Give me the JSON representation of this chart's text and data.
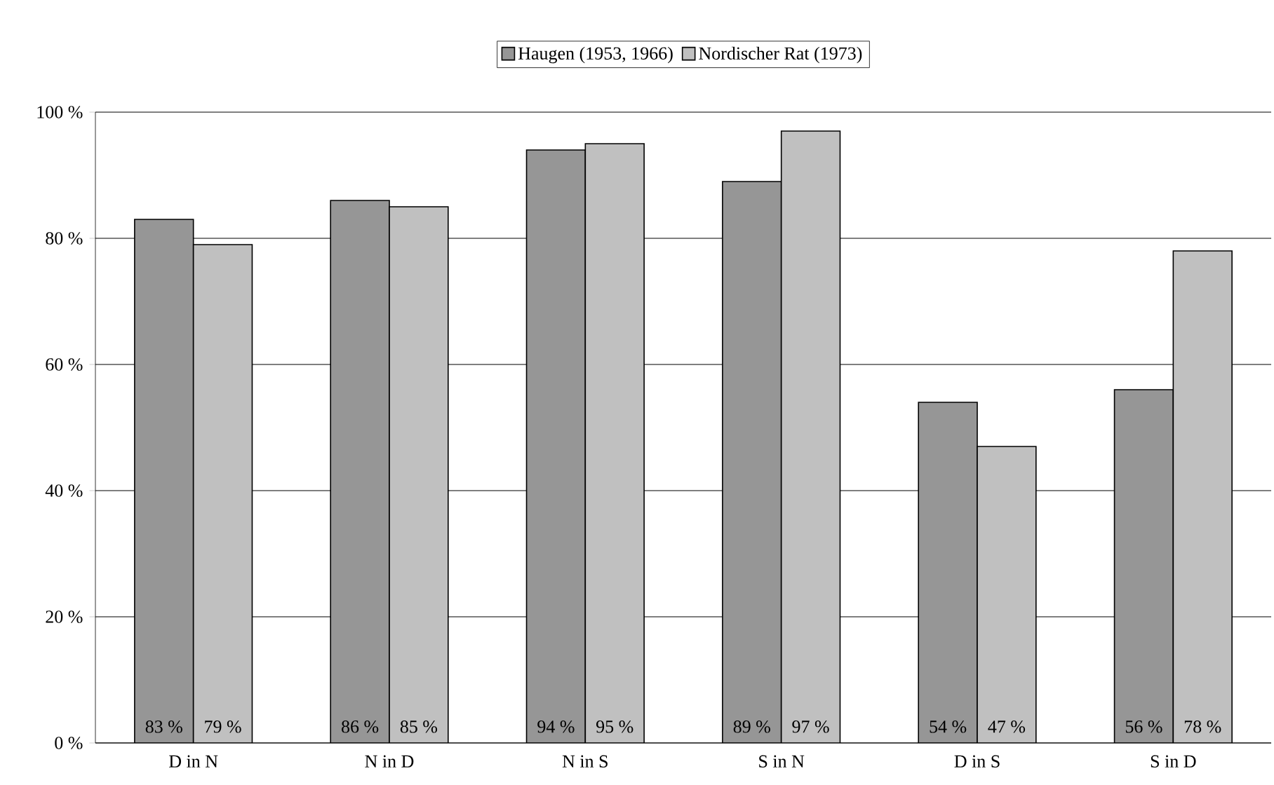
{
  "chart_data": {
    "type": "bar",
    "categories": [
      "D in N",
      "N in D",
      "N in S",
      "S in N",
      "D in S",
      "S in D"
    ],
    "series": [
      {
        "name": "Haugen (1953, 1966)",
        "color": "#969696",
        "values": [
          83,
          86,
          94,
          89,
          54,
          56
        ],
        "value_labels": [
          "83 %",
          "86 %",
          "94 %",
          "89 %",
          "54 %",
          "56 %"
        ]
      },
      {
        "name": "Nordischer Rat (1973)",
        "color": "#c0c0c0",
        "values": [
          79,
          85,
          95,
          97,
          47,
          78
        ],
        "value_labels": [
          "79 %",
          "85 %",
          "95 %",
          "97 %",
          "47 %",
          "78 %"
        ]
      }
    ],
    "ylim": [
      0,
      100
    ],
    "yticks": [
      {
        "value": 0,
        "label": "0 %"
      },
      {
        "value": 20,
        "label": "20 %"
      },
      {
        "value": 40,
        "label": "40 %"
      },
      {
        "value": 60,
        "label": "60 %"
      },
      {
        "value": 80,
        "label": "80 %"
      },
      {
        "value": 100,
        "label": "100 %"
      }
    ],
    "grid": "y",
    "legend": "top"
  }
}
